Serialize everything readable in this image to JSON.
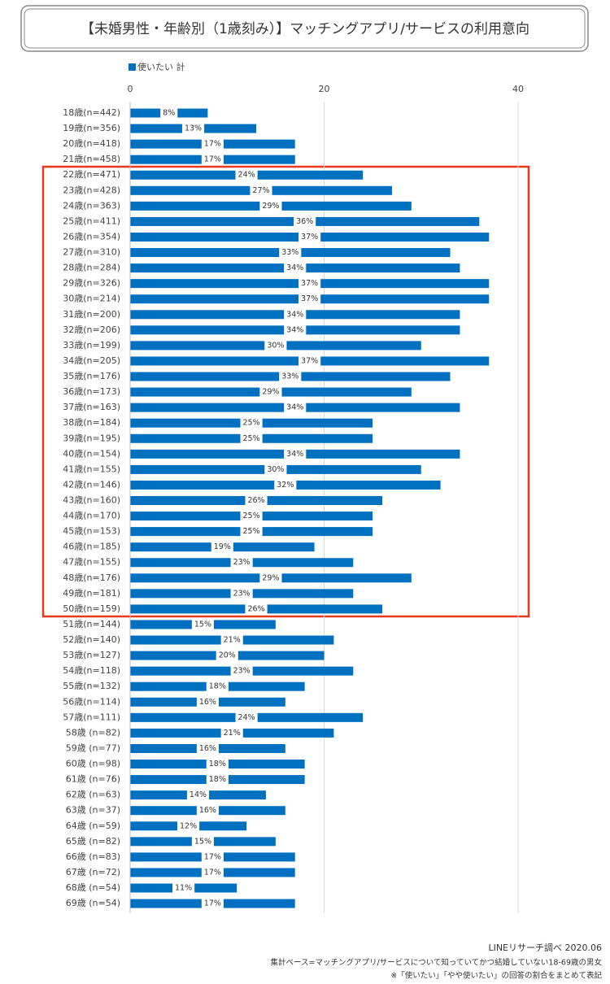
{
  "chart_data": {
    "type": "bar",
    "orientation": "horizontal",
    "title": "【未婚男性・年齢別（1歳刻み）】マッチングアプリ/サービスの利用意向",
    "categories": [
      "18歳(n=442)",
      "19歳(n=356)",
      "20歳(n=418)",
      "21歳(n=458)",
      "22歳(n=471)",
      "23歳(n=428)",
      "24歳(n=363)",
      "25歳(n=411)",
      "26歳(n=354)",
      "27歳(n=310)",
      "28歳(n=284)",
      "29歳(n=326)",
      "30歳(n=214)",
      "31歳(n=200)",
      "32歳(n=206)",
      "33歳(n=199)",
      "34歳(n=205)",
      "35歳(n=176)",
      "36歳(n=173)",
      "37歳(n=163)",
      "38歳(n=184)",
      "39歳(n=195)",
      "40歳(n=154)",
      "41歳(n=155)",
      "42歳(n=146)",
      "43歳(n=160)",
      "44歳(n=170)",
      "45歳(n=153)",
      "46歳(n=185)",
      "47歳(n=155)",
      "48歳(n=176)",
      "49歳(n=181)",
      "50歳(n=159)",
      "51歳(n=144)",
      "52歳(n=140)",
      "53歳(n=127)",
      "54歳(n=118)",
      "55歳(n=132)",
      "56歳(n=114)",
      "57歳(n=111)",
      "58歳 (n=82)",
      "59歳 (n=77)",
      "60歳 (n=98)",
      "61歳 (n=76)",
      "62歳 (n=63)",
      "63歳 (n=37)",
      "64歳 (n=59)",
      "65歳 (n=82)",
      "66歳 (n=83)",
      "67歳 (n=72)",
      "68歳 (n=54)",
      "69歳 (n=54)"
    ],
    "series": [
      {
        "name": "使いたい 計",
        "color": "#0070c0",
        "values": [
          8,
          13,
          17,
          17,
          24,
          27,
          29,
          36,
          37,
          33,
          34,
          37,
          37,
          34,
          34,
          30,
          37,
          33,
          29,
          34,
          25,
          25,
          34,
          30,
          32,
          26,
          25,
          25,
          19,
          23,
          29,
          23,
          26,
          15,
          21,
          20,
          23,
          18,
          16,
          24,
          21,
          16,
          18,
          18,
          14,
          16,
          12,
          15,
          17,
          17,
          11,
          17
        ],
        "value_labels": [
          "8%",
          "13%",
          "17%",
          "17%",
          "24%",
          "27%",
          "29%",
          "36%",
          "37%",
          "33%",
          "34%",
          "37%",
          "37%",
          "34%",
          "34%",
          "30%",
          "37%",
          "33%",
          "29%",
          "34%",
          "25%",
          "25%",
          "34%",
          "30%",
          "32%",
          "26%",
          "25%",
          "25%",
          "19%",
          "23%",
          "29%",
          "23%",
          "26%",
          "15%",
          "21%",
          "20%",
          "23%",
          "18%",
          "16%",
          "24%",
          "21%",
          "16%",
          "18%",
          "18%",
          "14%",
          "16%",
          "12%",
          "15%",
          "17%",
          "17%",
          "11%",
          "17%"
        ]
      }
    ],
    "xlim": [
      0,
      40
    ],
    "xticks": [
      0,
      20,
      40
    ],
    "grid": true,
    "legend": "top-left",
    "notes": [
      "LINEリサーチ調べ 2020.06",
      "集計ベース=マッチングアプリ/サービスについて知っていてかつ結婚していない18-69歳の男女",
      "※「使いたい」「やや使いたい」の回答の割合をまとめて表記"
    ]
  }
}
